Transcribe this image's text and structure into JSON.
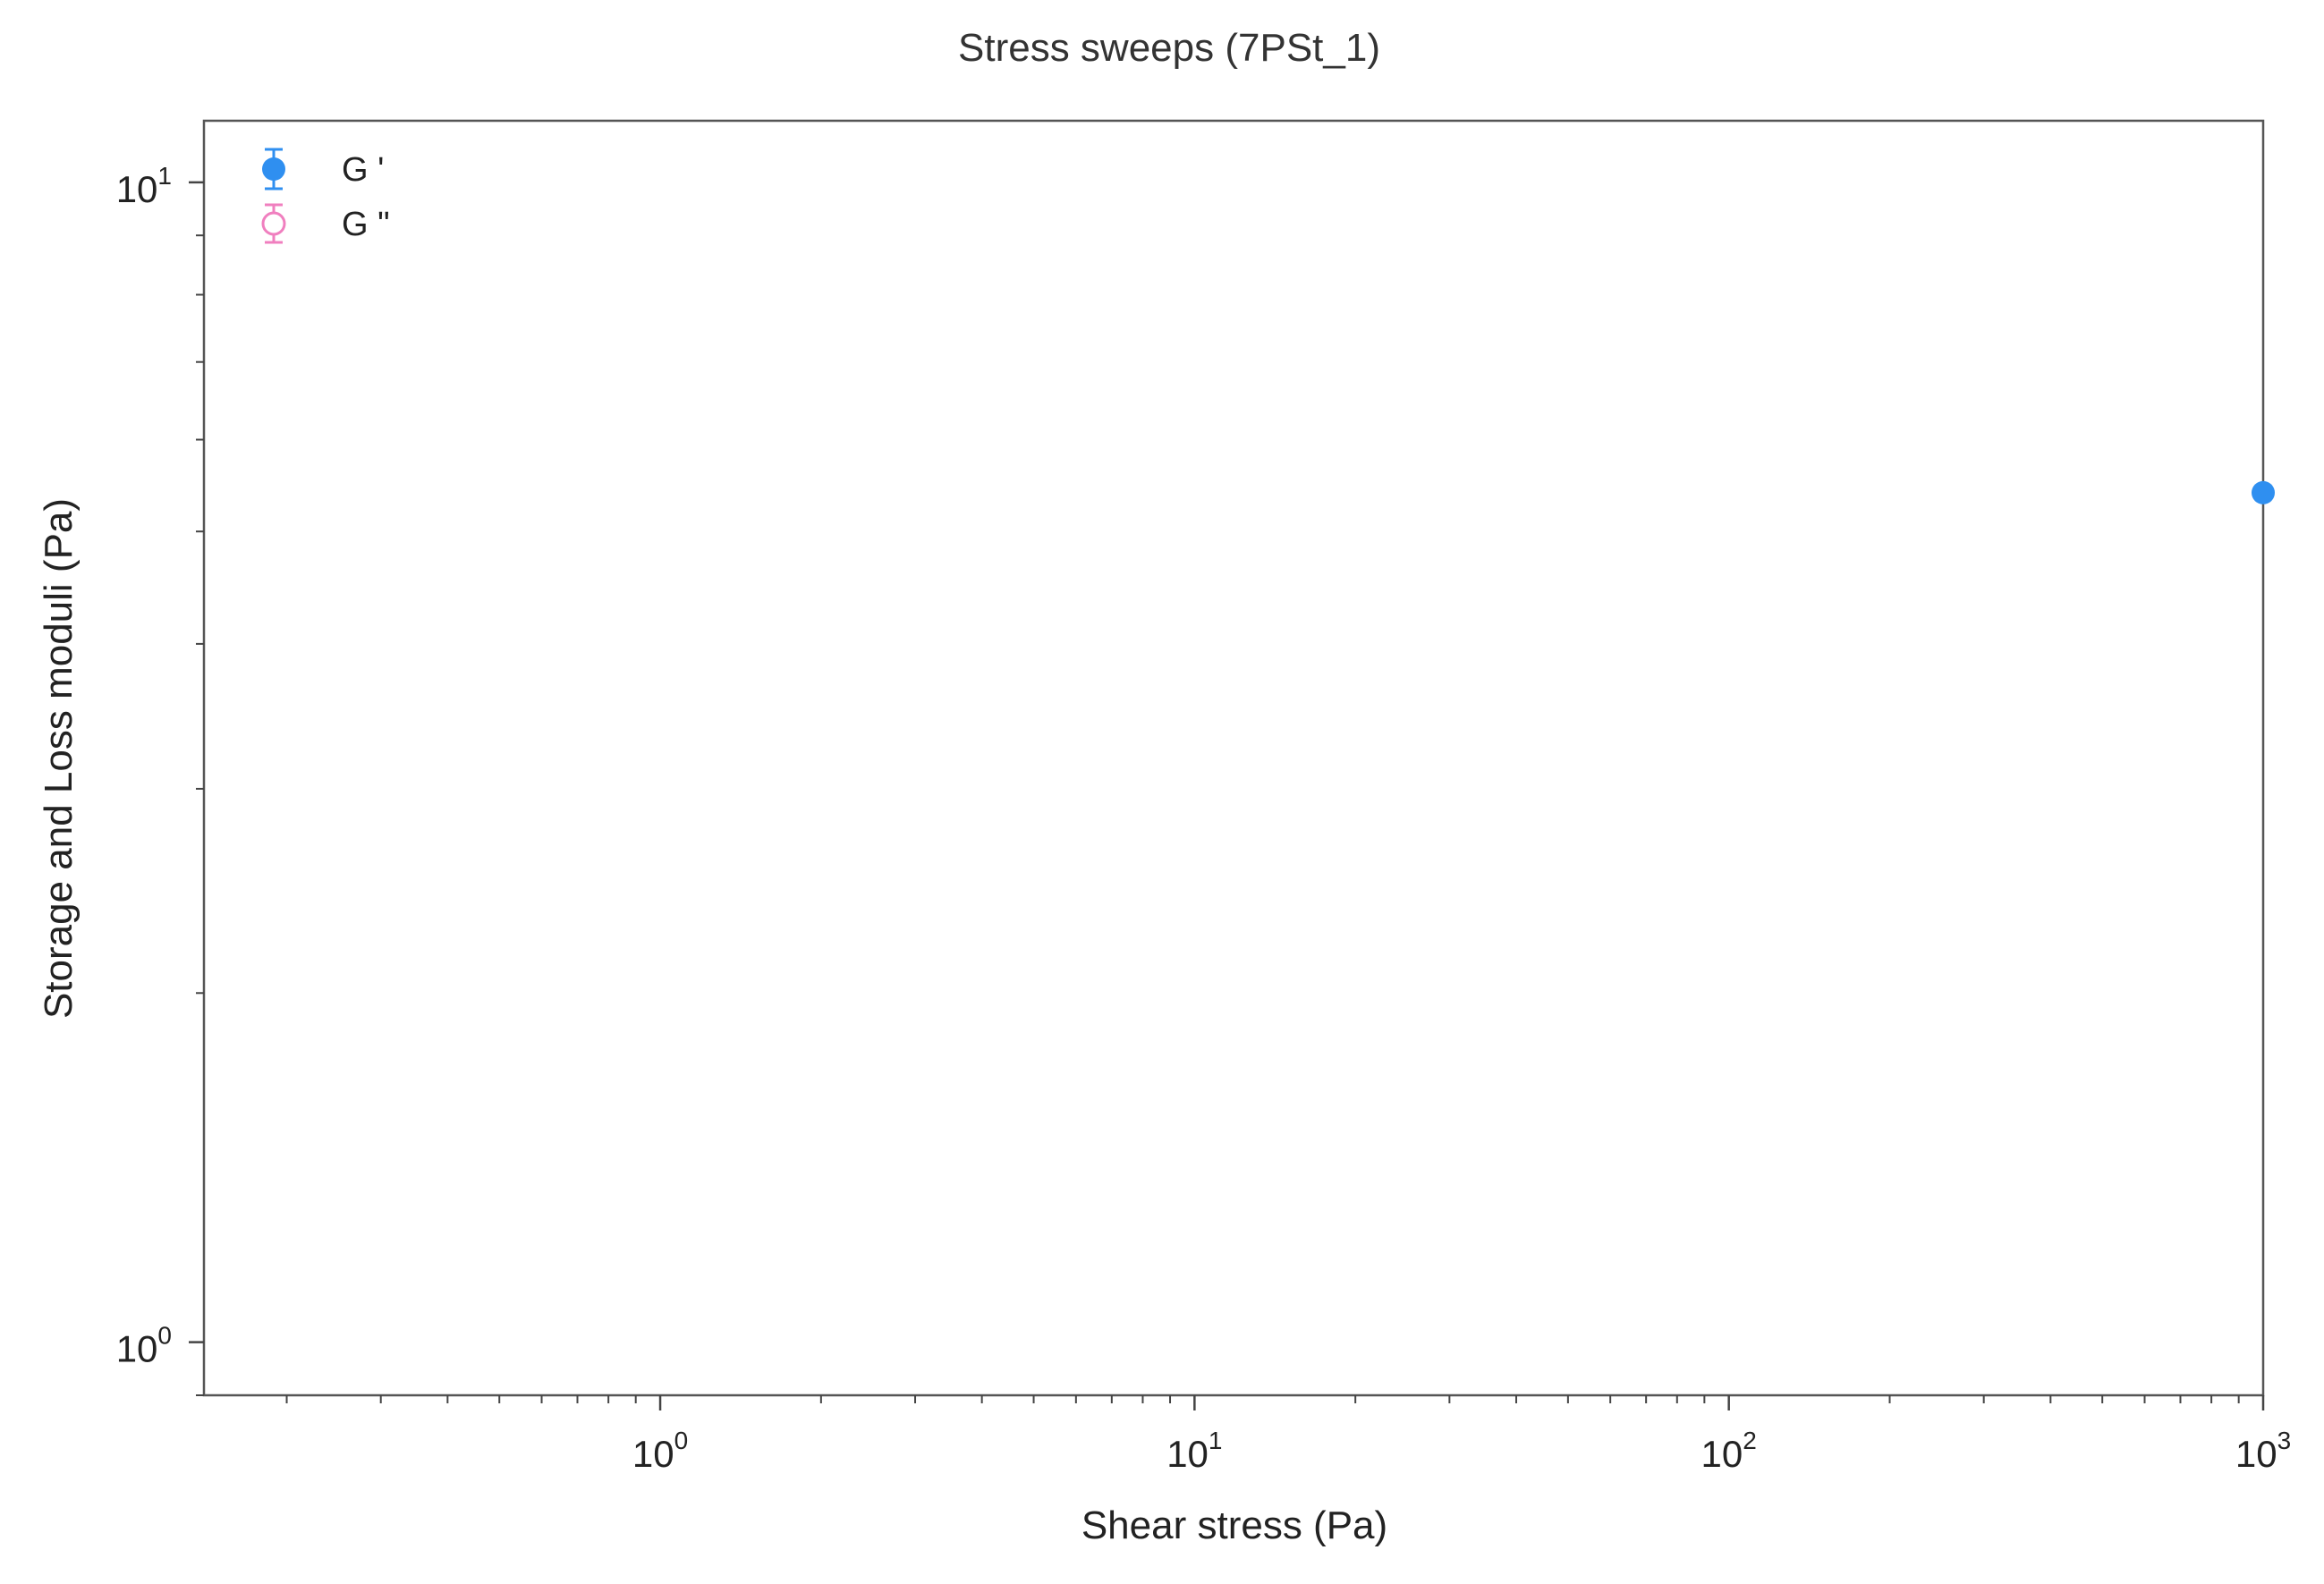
{
  "chart_data": {
    "type": "scatter",
    "title": "Stress sweeps (7PSt_1)",
    "xlabel": "Shear stress (Pa)",
    "ylabel": "Storage and Loss moduli (Pa)",
    "xscale": "log",
    "yscale": "log",
    "xlim": [
      0.14,
      1000
    ],
    "ylim": [
      0.9,
      11.3
    ],
    "grid": false,
    "legend_position": "top-left",
    "x_ticks": [
      {
        "value": 1,
        "base": "10",
        "exp": "0"
      },
      {
        "value": 10,
        "base": "10",
        "exp": "1"
      },
      {
        "value": 100,
        "base": "10",
        "exp": "2"
      },
      {
        "value": 1000,
        "base": "10",
        "exp": "3"
      }
    ],
    "y_ticks": [
      {
        "value": 1,
        "base": "10",
        "exp": "0"
      },
      {
        "value": 10,
        "base": "10",
        "exp": "1"
      }
    ],
    "series": [
      {
        "name": "G '",
        "marker": "filled-circle",
        "color": "#2f8ff0",
        "points": [
          {
            "x": 1000,
            "y": 5.4
          }
        ]
      },
      {
        "name": "G \"",
        "marker": "open-circle",
        "color": "#f07fbf",
        "points": []
      }
    ]
  }
}
